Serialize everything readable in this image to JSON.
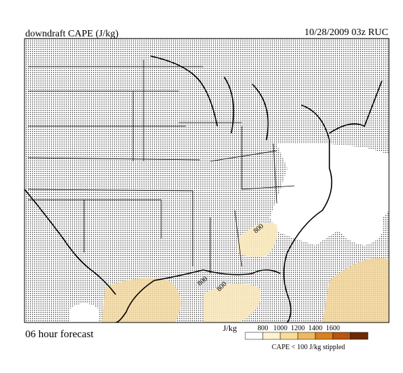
{
  "header": {
    "title": "downdraft CAPE (J/kg)",
    "valid": "10/28/2009  03z  RUC"
  },
  "footer": {
    "forecast": "06 hour forecast"
  },
  "map": {
    "contour_labels": [
      "800",
      "800",
      "800"
    ]
  },
  "legend": {
    "unit": "J/kg",
    "labels": [
      "800",
      "1000",
      "1200",
      "1400",
      "1600"
    ],
    "colors": [
      "#ffffff",
      "#fdf3d0",
      "#f8dd98",
      "#eeb860",
      "#d9801f",
      "#b85510",
      "#6e2a05"
    ],
    "note": "CAPE < 100 J/kg stippled"
  }
}
